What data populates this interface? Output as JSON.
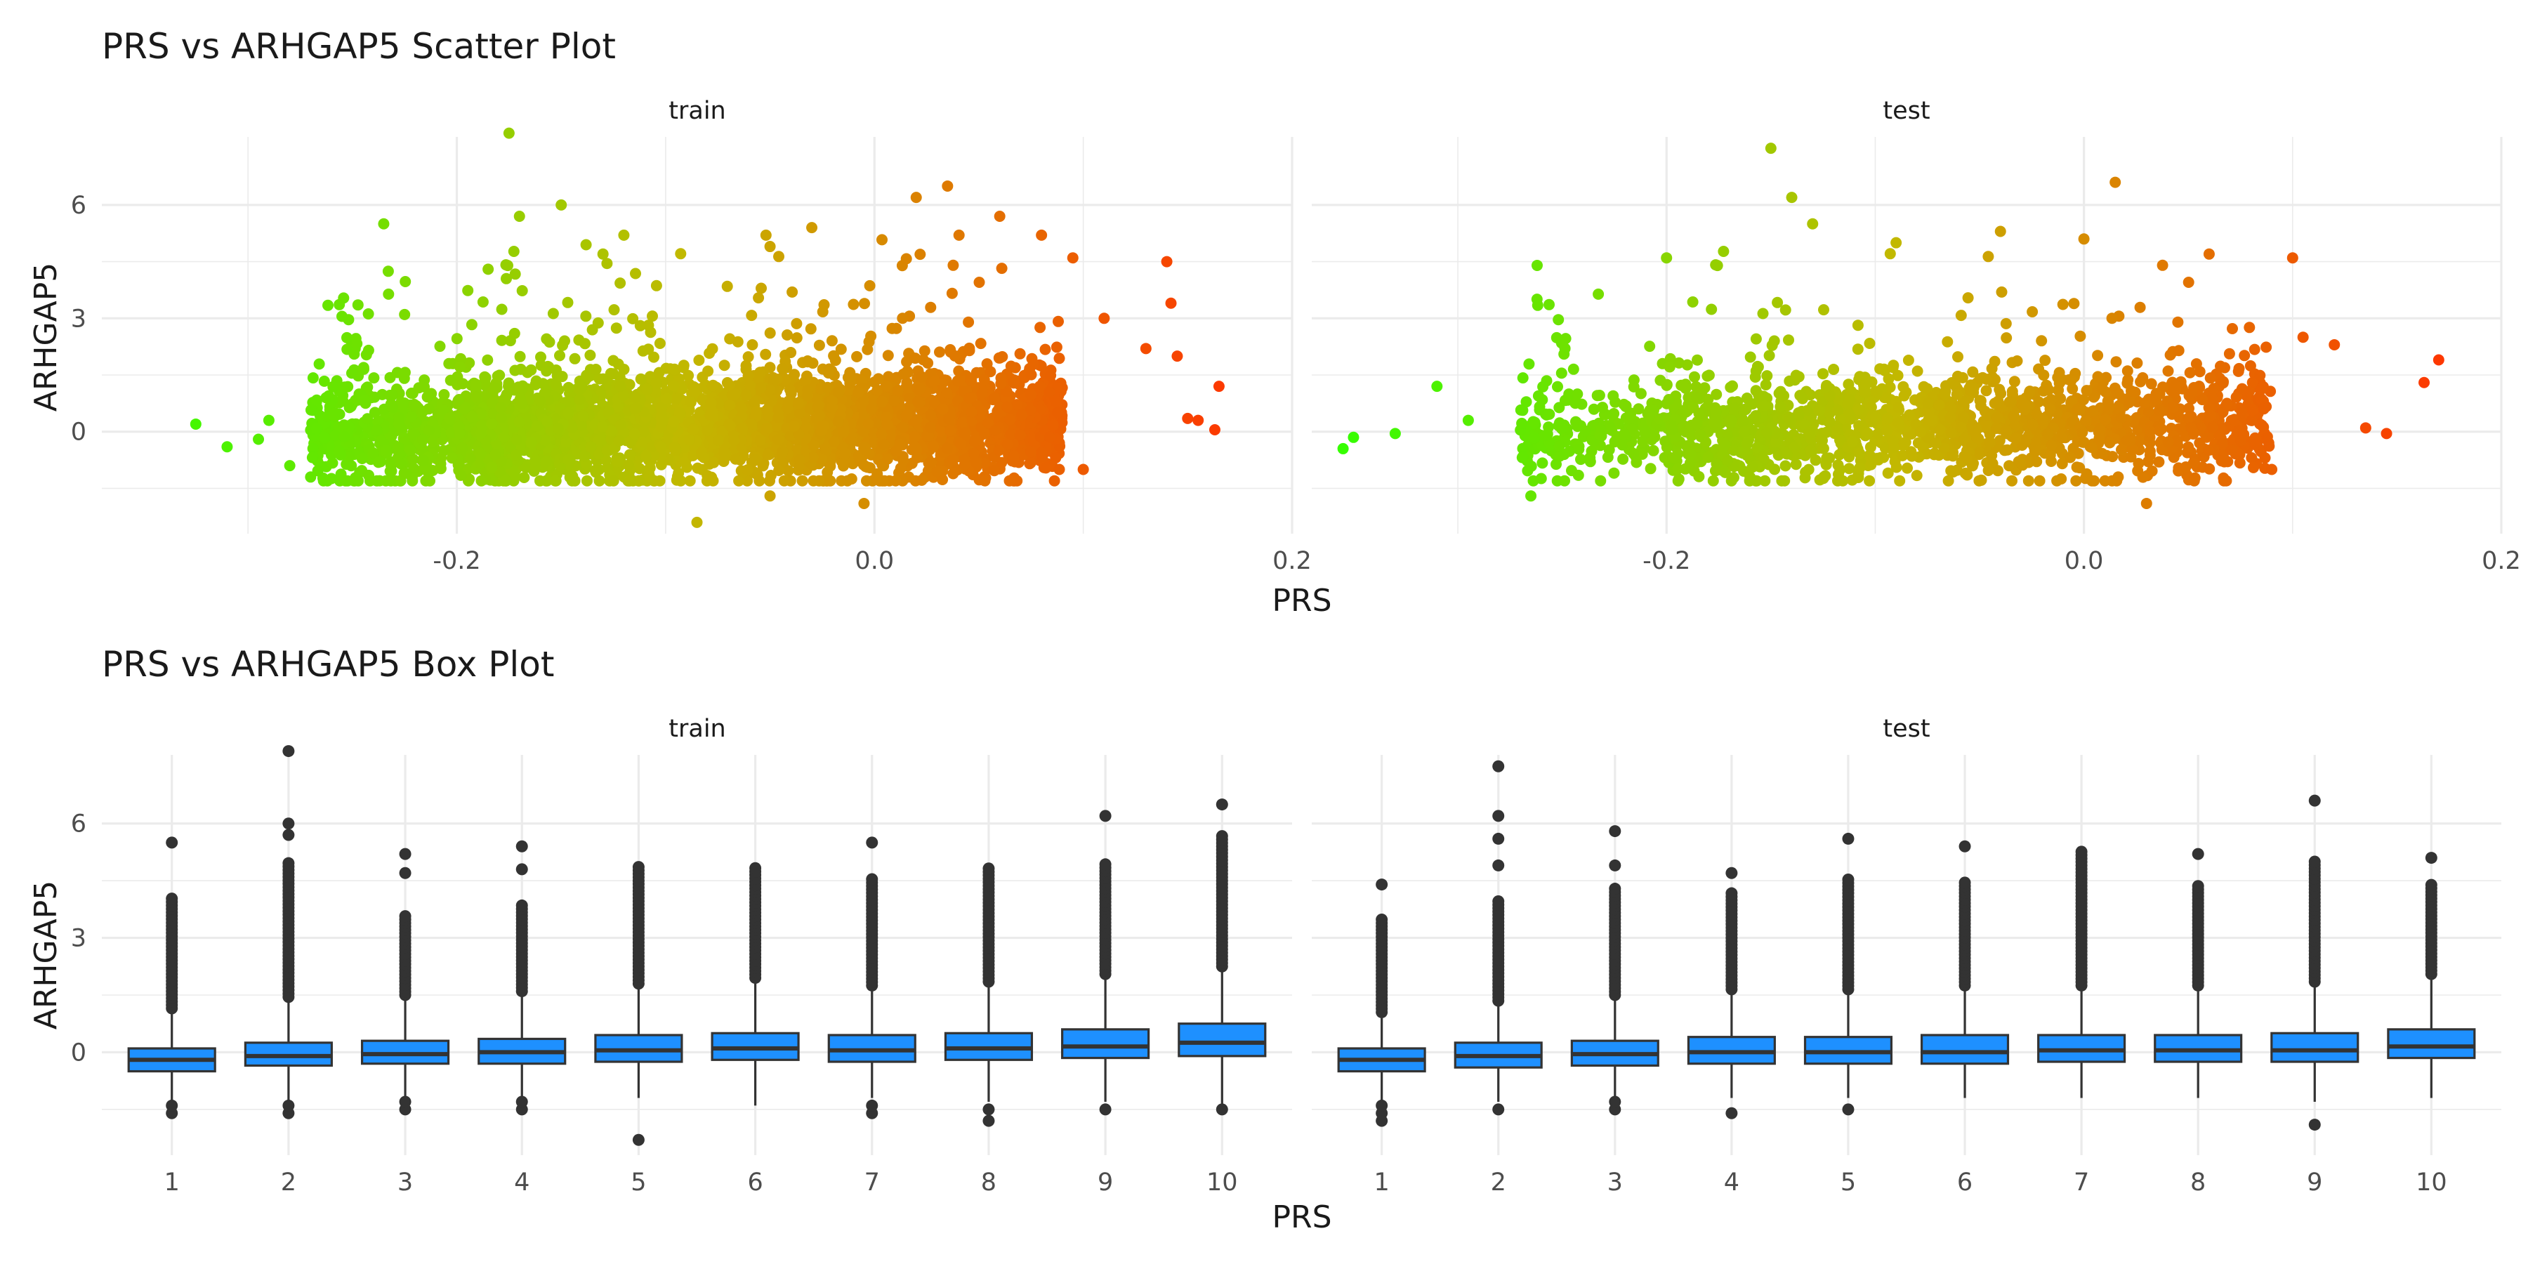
{
  "chart_data": [
    {
      "type": "scatter",
      "title": "PRS vs ARHGAP5 Scatter Plot",
      "xlabel": "PRS",
      "ylabel": "ARHGAP5",
      "panels": [
        "train",
        "test"
      ],
      "xlim": [
        -0.37,
        0.2
      ],
      "ylim": [
        -2.7,
        7.8
      ],
      "x_ticks": [
        -0.2,
        0.0,
        0.2
      ],
      "x_tick_labels": [
        "-0.2",
        "0.0",
        "0.2"
      ],
      "y_ticks": [
        0,
        3,
        6
      ],
      "y_tick_labels": [
        "0",
        "3",
        "6"
      ],
      "color_gradient": {
        "low": "#33ff00",
        "mid": "#c2b800",
        "high": "#ff3300",
        "encodes": "PRS"
      },
      "grid": true,
      "points": {
        "train": [
          [
            -0.325,
            0.2
          ],
          [
            -0.31,
            -0.4
          ],
          [
            -0.295,
            -0.2
          ],
          [
            -0.29,
            0.3
          ],
          [
            -0.235,
            5.5
          ],
          [
            -0.225,
            3.1
          ],
          [
            -0.185,
            4.3
          ],
          [
            -0.175,
            7.9
          ],
          [
            -0.17,
            5.7
          ],
          [
            -0.15,
            6.0
          ],
          [
            -0.13,
            4.7
          ],
          [
            -0.12,
            5.2
          ],
          [
            -0.085,
            -2.4
          ],
          [
            -0.05,
            4.9
          ],
          [
            -0.03,
            5.4
          ],
          [
            0.02,
            6.2
          ],
          [
            0.035,
            6.5
          ],
          [
            0.06,
            5.7
          ],
          [
            0.08,
            5.2
          ],
          [
            0.095,
            4.6
          ],
          [
            0.11,
            3.0
          ],
          [
            0.13,
            2.2
          ],
          [
            0.14,
            4.5
          ],
          [
            0.142,
            3.4
          ],
          [
            0.145,
            2.0
          ],
          [
            0.15,
            0.35
          ],
          [
            0.155,
            0.3
          ],
          [
            0.165,
            1.2
          ],
          [
            0.163,
            0.05
          ],
          [
            -0.005,
            -1.9
          ],
          [
            -0.05,
            -1.7
          ],
          [
            0.1,
            -1.0
          ],
          [
            -0.27,
            -1.2
          ],
          [
            -0.28,
            -0.9
          ]
        ],
        "test": [
          [
            -0.355,
            -0.45
          ],
          [
            -0.35,
            -0.15
          ],
          [
            -0.33,
            -0.05
          ],
          [
            -0.31,
            1.2
          ],
          [
            -0.295,
            0.3
          ],
          [
            -0.262,
            4.4
          ],
          [
            -0.2,
            4.6
          ],
          [
            -0.15,
            7.5
          ],
          [
            -0.14,
            6.2
          ],
          [
            -0.13,
            5.5
          ],
          [
            -0.09,
            5.0
          ],
          [
            -0.04,
            5.3
          ],
          [
            0.0,
            5.1
          ],
          [
            0.015,
            6.6
          ],
          [
            0.06,
            4.7
          ],
          [
            0.1,
            4.6
          ],
          [
            0.105,
            2.5
          ],
          [
            0.12,
            2.3
          ],
          [
            0.145,
            -0.05
          ],
          [
            0.135,
            0.1
          ],
          [
            0.163,
            1.3
          ],
          [
            0.17,
            1.9
          ],
          [
            0.03,
            -1.9
          ],
          [
            -0.265,
            -1.7
          ],
          [
            -0.16,
            -1.2
          ],
          [
            0.09,
            -1.0
          ]
        ]
      }
    },
    {
      "type": "box",
      "title": "PRS vs ARHGAP5 Box Plot",
      "xlabel": "PRS",
      "ylabel": "ARHGAP5",
      "panels": [
        "train",
        "test"
      ],
      "categories": [
        "1",
        "2",
        "3",
        "4",
        "5",
        "6",
        "7",
        "8",
        "9",
        "10"
      ],
      "ylim": [
        -2.7,
        7.8
      ],
      "y_ticks": [
        0,
        3,
        6
      ],
      "y_tick_labels": [
        "0",
        "3",
        "6"
      ],
      "fill": "#1e90ff",
      "grid": true,
      "series": {
        "train": [
          {
            "q1": -0.5,
            "median": -0.2,
            "q3": 0.1,
            "lw": -1.4,
            "uw": 1.0,
            "out_low": [
              -1.6,
              -1.4
            ],
            "out_high_max": 4.1,
            "out_extra": [
              5.5
            ]
          },
          {
            "q1": -0.35,
            "median": -0.1,
            "q3": 0.25,
            "lw": -1.3,
            "uw": 1.3,
            "out_low": [
              -1.6,
              -1.4
            ],
            "out_high_max": 5.0,
            "out_extra": [
              6.0,
              5.7,
              7.9
            ]
          },
          {
            "q1": -0.3,
            "median": -0.05,
            "q3": 0.3,
            "lw": -1.2,
            "uw": 1.35,
            "out_low": [
              -1.5,
              -1.3
            ],
            "out_high_max": 3.6,
            "out_extra": [
              4.7,
              5.2
            ]
          },
          {
            "q1": -0.3,
            "median": 0.0,
            "q3": 0.35,
            "lw": -1.2,
            "uw": 1.45,
            "out_low": [
              -1.5,
              -1.3
            ],
            "out_high_max": 3.9,
            "out_extra": [
              4.8,
              5.4
            ]
          },
          {
            "q1": -0.25,
            "median": 0.05,
            "q3": 0.45,
            "lw": -1.2,
            "uw": 1.65,
            "out_low": [
              -2.3
            ],
            "out_high_max": 4.9,
            "out_extra": []
          },
          {
            "q1": -0.2,
            "median": 0.1,
            "q3": 0.5,
            "lw": -1.4,
            "uw": 1.8,
            "out_low": [],
            "out_high_max": 4.9,
            "out_extra": []
          },
          {
            "q1": -0.25,
            "median": 0.05,
            "q3": 0.45,
            "lw": -1.2,
            "uw": 1.6,
            "out_low": [
              -1.6,
              -1.4
            ],
            "out_high_max": 4.6,
            "out_extra": [
              5.5
            ]
          },
          {
            "q1": -0.2,
            "median": 0.1,
            "q3": 0.5,
            "lw": -1.3,
            "uw": 1.7,
            "out_low": [
              -1.8,
              -1.5
            ],
            "out_high_max": 4.9,
            "out_extra": []
          },
          {
            "q1": -0.15,
            "median": 0.15,
            "q3": 0.6,
            "lw": -1.3,
            "uw": 1.9,
            "out_low": [
              -1.5
            ],
            "out_high_max": 5.0,
            "out_extra": [
              6.2
            ]
          },
          {
            "q1": -0.1,
            "median": 0.25,
            "q3": 0.75,
            "lw": -1.5,
            "uw": 2.1,
            "out_low": [
              -1.5
            ],
            "out_high_max": 5.7,
            "out_extra": [
              6.5
            ]
          }
        ],
        "test": [
          {
            "q1": -0.5,
            "median": -0.2,
            "q3": 0.1,
            "lw": -1.3,
            "uw": 0.9,
            "out_low": [
              -1.8,
              -1.6,
              -1.4
            ],
            "out_high_max": 3.5,
            "out_extra": [
              4.4
            ]
          },
          {
            "q1": -0.4,
            "median": -0.1,
            "q3": 0.25,
            "lw": -1.3,
            "uw": 1.2,
            "out_low": [
              -1.5
            ],
            "out_high_max": 4.0,
            "out_extra": [
              4.9,
              5.6,
              6.2,
              7.5
            ]
          },
          {
            "q1": -0.35,
            "median": -0.05,
            "q3": 0.3,
            "lw": -1.2,
            "uw": 1.35,
            "out_low": [
              -1.5,
              -1.3
            ],
            "out_high_max": 4.3,
            "out_extra": [
              4.9,
              5.8
            ]
          },
          {
            "q1": -0.3,
            "median": 0.0,
            "q3": 0.4,
            "lw": -1.2,
            "uw": 1.5,
            "out_low": [
              -1.6
            ],
            "out_high_max": 4.2,
            "out_extra": [
              4.7
            ]
          },
          {
            "q1": -0.3,
            "median": 0.0,
            "q3": 0.4,
            "lw": -1.2,
            "uw": 1.5,
            "out_low": [
              -1.5
            ],
            "out_high_max": 4.6,
            "out_extra": [
              5.6
            ]
          },
          {
            "q1": -0.3,
            "median": 0.0,
            "q3": 0.45,
            "lw": -1.2,
            "uw": 1.6,
            "out_low": [],
            "out_high_max": 4.5,
            "out_extra": [
              5.4
            ]
          },
          {
            "q1": -0.25,
            "median": 0.05,
            "q3": 0.45,
            "lw": -1.2,
            "uw": 1.6,
            "out_low": [],
            "out_high_max": 5.3,
            "out_extra": []
          },
          {
            "q1": -0.25,
            "median": 0.05,
            "q3": 0.45,
            "lw": -1.2,
            "uw": 1.6,
            "out_low": [],
            "out_high_max": 4.4,
            "out_extra": [
              5.2
            ]
          },
          {
            "q1": -0.25,
            "median": 0.05,
            "q3": 0.5,
            "lw": -1.3,
            "uw": 1.7,
            "out_low": [
              -1.9
            ],
            "out_high_max": 5.0,
            "out_extra": [
              6.6
            ]
          },
          {
            "q1": -0.15,
            "median": 0.15,
            "q3": 0.6,
            "lw": -1.2,
            "uw": 1.9,
            "out_low": [],
            "out_high_max": 4.4,
            "out_extra": [
              5.1
            ]
          }
        ]
      }
    }
  ]
}
